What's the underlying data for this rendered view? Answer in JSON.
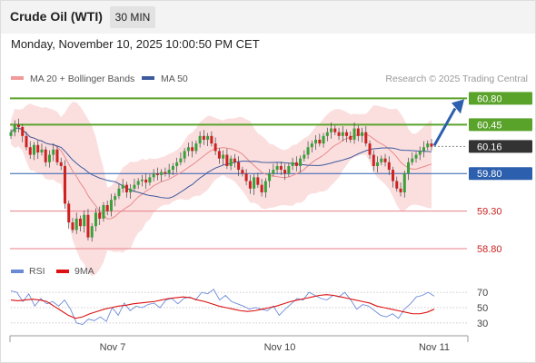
{
  "header": {
    "title": "Crude Oil (WTI)",
    "timeframe": "30 MIN"
  },
  "datetime": "Monday, November 10, 2025 10:00:50 PM CET",
  "credit": "Research © 2025 Trading Central",
  "colors": {
    "resistance": "#5aa32b",
    "support": "#e87f8a",
    "pivot": "#2c5fad",
    "current": "#333333",
    "candle_up": "#3aa03a",
    "candle_down": "#cc2222",
    "bollinger": "#f7c4c4",
    "ma20": "#e88b8b",
    "ma50": "#3d5a9e",
    "rsi": "#6a8ad8",
    "rsi_ma": "#dd1111"
  },
  "chart_data": [
    {
      "type": "candlestick",
      "legend": [
        {
          "name": "MA 20 + Bollinger Bands",
          "color": "#f29a9a"
        },
        {
          "name": "MA 50",
          "color": "#3d5a9e"
        }
      ],
      "ylim": [
        58.68,
        60.95
      ],
      "levels": [
        {
          "value": 60.8,
          "label": "60.80",
          "kind": "resistance"
        },
        {
          "value": 60.45,
          "label": "60.45",
          "kind": "resistance"
        },
        {
          "value": 60.16,
          "label": "60.16",
          "kind": "current"
        },
        {
          "value": 59.8,
          "label": "59.80",
          "kind": "pivot"
        },
        {
          "value": 59.3,
          "label": "59.30",
          "kind": "support"
        },
        {
          "value": 58.8,
          "label": "58.80",
          "kind": "support"
        }
      ],
      "x_labels": [
        "Nov 7",
        "Nov 10",
        "Nov 11"
      ],
      "close": [
        60.35,
        60.45,
        60.42,
        60.3,
        60.15,
        60.05,
        60.18,
        60.08,
        60.12,
        59.95,
        60.05,
        60.12,
        59.95,
        59.9,
        59.4,
        59.15,
        59.05,
        59.2,
        59.1,
        59.25,
        58.95,
        59.1,
        59.28,
        59.2,
        59.38,
        59.3,
        59.45,
        59.5,
        59.6,
        59.65,
        59.55,
        59.6,
        59.65,
        59.7,
        59.72,
        59.68,
        59.75,
        59.8,
        59.78,
        59.82,
        59.8,
        59.85,
        59.9,
        59.95,
        60.0,
        60.1,
        60.15,
        60.1,
        60.2,
        60.3,
        60.25,
        60.3,
        60.2,
        60.1,
        60.0,
        60.05,
        59.9,
        60.0,
        59.95,
        59.85,
        59.8,
        59.7,
        59.6,
        59.75,
        59.65,
        59.55,
        59.7,
        59.8,
        59.85,
        59.9,
        59.85,
        59.8,
        59.9,
        59.95,
        59.9,
        60.0,
        60.05,
        60.15,
        60.2,
        60.25,
        60.2,
        60.3,
        60.35,
        60.4,
        60.35,
        60.3,
        60.35,
        60.3,
        60.25,
        60.4,
        60.3,
        60.35,
        60.2,
        60.05,
        59.9,
        59.95,
        60.0,
        59.95,
        59.85,
        59.7,
        59.6,
        59.55,
        59.8,
        59.95,
        60.0,
        60.05,
        60.1,
        60.15,
        60.2,
        60.16
      ]
    },
    {
      "type": "line",
      "legend": [
        {
          "name": "RSI",
          "color": "#6a8ad8"
        },
        {
          "name": "9MA",
          "color": "#dd1111"
        }
      ],
      "y_ticks": [
        "70",
        "50",
        "30"
      ],
      "ylim": [
        18,
        82
      ],
      "series": [
        {
          "name": "RSI",
          "values": [
            72,
            70,
            58,
            68,
            52,
            62,
            55,
            58,
            52,
            60,
            48,
            30,
            28,
            35,
            33,
            38,
            32,
            50,
            40,
            56,
            46,
            52,
            50,
            54,
            56,
            50,
            60,
            62,
            55,
            62,
            64,
            60,
            70,
            68,
            74,
            60,
            66,
            58,
            55,
            52,
            48,
            50,
            48,
            46,
            52,
            40,
            48,
            55,
            62,
            60,
            70,
            66,
            62,
            60,
            66,
            64,
            70,
            60,
            48,
            54,
            52,
            46,
            40,
            38,
            42,
            36,
            48,
            55,
            64,
            66,
            70,
            65
          ]
        },
        {
          "name": "9MA",
          "values": [
            60,
            59,
            60,
            61,
            60,
            58,
            52,
            46,
            40,
            36,
            38,
            42,
            45,
            48,
            50,
            52,
            53,
            55,
            56,
            57,
            58,
            60,
            62,
            63,
            64,
            63,
            60,
            58,
            55,
            52,
            50,
            48,
            46,
            45,
            46,
            48,
            50,
            52,
            55,
            58,
            60,
            62,
            64,
            66,
            67,
            66,
            64,
            62,
            60,
            58,
            56,
            52,
            50,
            48,
            46,
            44,
            42,
            42,
            44,
            48
          ]
        }
      ]
    }
  ]
}
